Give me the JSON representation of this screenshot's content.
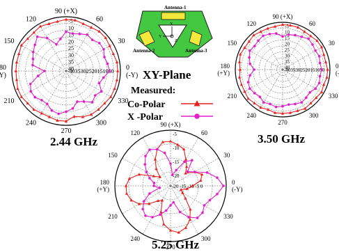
{
  "header": {
    "plane_title": "XY-Plane",
    "measured_label": "Measured:",
    "legend": [
      {
        "label": "Co-Polar",
        "color": "#e8201e",
        "marker": "triangle"
      },
      {
        "label": "X -Polar",
        "color": "#e020c8",
        "marker": "circle"
      }
    ]
  },
  "antenna_diagram": {
    "labels": [
      "Antenna-1",
      "Antenna-2",
      "Antenna-3"
    ],
    "axis_labels": [
      "X",
      "Y",
      "Z"
    ],
    "colors": {
      "body": "#44c842",
      "element": "#f4e83c",
      "outline": "#1a1a1a"
    }
  },
  "chart_data": [
    {
      "type": "polar",
      "caption": "2.44 GHz",
      "angle_labels": [
        {
          "deg": 90,
          "text": "90 (+X)"
        },
        {
          "deg": 60,
          "text": "60"
        },
        {
          "deg": 30,
          "text": "30"
        },
        {
          "deg": 0,
          "text": "0 (-Y)"
        },
        {
          "deg": 330,
          "text": "330"
        },
        {
          "deg": 300,
          "text": "300"
        },
        {
          "deg": 270,
          "text": "270"
        },
        {
          "deg": 240,
          "text": "240"
        },
        {
          "deg": 210,
          "text": "210"
        },
        {
          "deg": 180,
          "text": "180 (+Y)"
        },
        {
          "deg": 150,
          "text": "150"
        },
        {
          "deg": 120,
          "text": "120"
        }
      ],
      "radial_ticks": [
        "-5",
        "10",
        "15",
        "20",
        "25",
        "30",
        "35",
        "40"
      ],
      "bottom_ticks": "-4035302520151050",
      "rlim": [
        -40,
        0
      ],
      "series": [
        {
          "name": "Co-Polar",
          "color": "#e8201e",
          "marker": "triangle",
          "angles": [
            0,
            10,
            20,
            30,
            40,
            50,
            60,
            70,
            80,
            90,
            100,
            110,
            120,
            130,
            140,
            150,
            160,
            170,
            180,
            190,
            200,
            210,
            220,
            230,
            240,
            250,
            260,
            270,
            280,
            290,
            300,
            310,
            320,
            330,
            340,
            350
          ],
          "values": [
            -2,
            -2,
            -3,
            -3,
            -2,
            -2,
            -3,
            -3,
            -2,
            -2,
            -3,
            -3,
            -2,
            -3,
            -3,
            -2,
            -3,
            -3,
            -3,
            -3,
            -2,
            -2,
            -3,
            -3,
            -4,
            -4,
            -3,
            -3,
            -6,
            -4,
            -3,
            -3,
            -3,
            -2,
            -2,
            -2
          ]
        },
        {
          "name": "X -Polar",
          "color": "#e020c8",
          "marker": "circle",
          "angles": [
            0,
            10,
            20,
            30,
            40,
            50,
            60,
            70,
            80,
            90,
            100,
            110,
            120,
            130,
            140,
            150,
            160,
            170,
            180,
            190,
            200,
            210,
            220,
            230,
            240,
            250,
            260,
            270,
            280,
            290,
            300,
            310,
            320,
            330,
            340,
            350
          ],
          "values": [
            -8,
            -9,
            -10,
            -8,
            -8,
            -10,
            -9,
            -11,
            -12,
            -11,
            -16,
            -19,
            -12,
            -7,
            -10,
            -12,
            -14,
            -15,
            -24,
            -19,
            -12,
            -10,
            -10,
            -12,
            -12,
            -9,
            -8,
            -10,
            -12,
            -16,
            -14,
            -10,
            -12,
            -10,
            -14,
            -12
          ]
        }
      ]
    },
    {
      "type": "polar",
      "caption": "3.50 GHz",
      "angle_labels": [
        {
          "deg": 90,
          "text": "90 (+X)"
        },
        {
          "deg": 60,
          "text": "60"
        },
        {
          "deg": 30,
          "text": "30"
        },
        {
          "deg": 0,
          "text": "0 (-Y)"
        },
        {
          "deg": 330,
          "text": "330"
        },
        {
          "deg": 300,
          "text": "300"
        },
        {
          "deg": 270,
          "text": "270"
        },
        {
          "deg": 240,
          "text": "240"
        },
        {
          "deg": 210,
          "text": "210"
        },
        {
          "deg": 180,
          "text": "180 (+Y)"
        },
        {
          "deg": 150,
          "text": "150"
        },
        {
          "deg": 120,
          "text": "120"
        }
      ],
      "radial_ticks": [
        "-5",
        "10",
        "15",
        "20",
        "25",
        "30",
        "35",
        "40"
      ],
      "bottom_ticks": "-4035302520151050",
      "rlim": [
        -40,
        0
      ],
      "series": [
        {
          "name": "Co-Polar",
          "color": "#e8201e",
          "marker": "triangle",
          "angles": [
            0,
            10,
            20,
            30,
            40,
            50,
            60,
            70,
            80,
            90,
            100,
            110,
            120,
            130,
            140,
            150,
            160,
            170,
            180,
            190,
            200,
            210,
            220,
            230,
            240,
            250,
            260,
            270,
            280,
            290,
            300,
            310,
            320,
            330,
            340,
            350
          ],
          "values": [
            -2,
            -3,
            -3,
            -2,
            -2,
            -3,
            -3,
            -2,
            -2,
            -2,
            -3,
            -3,
            -3,
            -2,
            -3,
            -3,
            -2,
            -3,
            -4,
            -3,
            -3,
            -3,
            -2,
            -3,
            -3,
            -4,
            -3,
            -3,
            -3,
            -3,
            -2,
            -3,
            -3,
            -2,
            -3,
            -2
          ]
        },
        {
          "name": "X -Polar",
          "color": "#e020c8",
          "marker": "circle",
          "angles": [
            0,
            10,
            20,
            30,
            40,
            50,
            60,
            70,
            80,
            90,
            100,
            110,
            120,
            130,
            140,
            150,
            160,
            170,
            180,
            190,
            200,
            210,
            220,
            230,
            240,
            250,
            260,
            270,
            280,
            290,
            300,
            310,
            320,
            330,
            340,
            350
          ],
          "values": [
            -7,
            -8,
            -7,
            -8,
            -7,
            -6,
            -8,
            -9,
            -10,
            -12,
            -9,
            -8,
            -7,
            -8,
            -9,
            -8,
            -10,
            -12,
            -16,
            -12,
            -9,
            -8,
            -9,
            -10,
            -8,
            -9,
            -8,
            -9,
            -10,
            -9,
            -8,
            -9,
            -10,
            -8,
            -7,
            -8
          ]
        }
      ]
    },
    {
      "type": "polar",
      "caption": "5.25 GHz",
      "angle_labels": [
        {
          "deg": 90,
          "text": "90 (+X)"
        },
        {
          "deg": 60,
          "text": "60"
        },
        {
          "deg": 30,
          "text": "30"
        },
        {
          "deg": 0,
          "text": "0 (-Y)"
        },
        {
          "deg": 330,
          "text": "330"
        },
        {
          "deg": 300,
          "text": "300"
        },
        {
          "deg": 270,
          "text": "270"
        },
        {
          "deg": 240,
          "text": "240"
        },
        {
          "deg": 210,
          "text": "210"
        },
        {
          "deg": 180,
          "text": "180 (+Y)"
        },
        {
          "deg": 150,
          "text": "150"
        },
        {
          "deg": 120,
          "text": "120"
        }
      ],
      "radial_ticks": [
        "-5",
        "-10",
        "-15",
        "-20"
      ],
      "bottom_ticks": "-20 -15 -10 -5 0",
      "rlim": [
        -20,
        0
      ],
      "series": [
        {
          "name": "Co-Polar",
          "color": "#e8201e",
          "marker": "triangle",
          "angles": [
            0,
            10,
            20,
            30,
            40,
            50,
            60,
            70,
            80,
            90,
            100,
            110,
            120,
            130,
            140,
            150,
            160,
            170,
            180,
            190,
            200,
            210,
            220,
            230,
            240,
            250,
            260,
            270,
            280,
            290,
            300,
            310,
            320,
            330,
            340,
            350
          ],
          "values": [
            -12,
            -9,
            -8,
            -10,
            -13,
            -11,
            -9,
            -6,
            -5,
            -4,
            -4,
            -6,
            -9,
            -12,
            -15,
            -13,
            -8,
            -5,
            -4,
            -4,
            -5,
            -7,
            -10,
            -13,
            -14,
            -10,
            -6,
            -4,
            -3,
            -4,
            -6,
            -9,
            -13,
            -15,
            -16,
            -14
          ]
        },
        {
          "name": "X -Polar",
          "color": "#e020c8",
          "marker": "circle",
          "angles": [
            0,
            10,
            20,
            30,
            40,
            50,
            60,
            70,
            80,
            90,
            100,
            110,
            120,
            130,
            140,
            150,
            160,
            170,
            180,
            190,
            200,
            210,
            220,
            230,
            240,
            250,
            260,
            270,
            280,
            290,
            300,
            310,
            320,
            330,
            340,
            350
          ],
          "values": [
            -1,
            -3,
            -6,
            -10,
            -12,
            -8,
            -10,
            -14,
            -16,
            -12,
            -8,
            -6,
            -5,
            -6,
            -8,
            -10,
            -12,
            -14,
            -14,
            -16,
            -12,
            -9,
            -7,
            -6,
            -7,
            -9,
            -11,
            -13,
            -14,
            -10,
            -7,
            -5,
            -5,
            -6,
            -5,
            -3
          ]
        }
      ]
    }
  ]
}
